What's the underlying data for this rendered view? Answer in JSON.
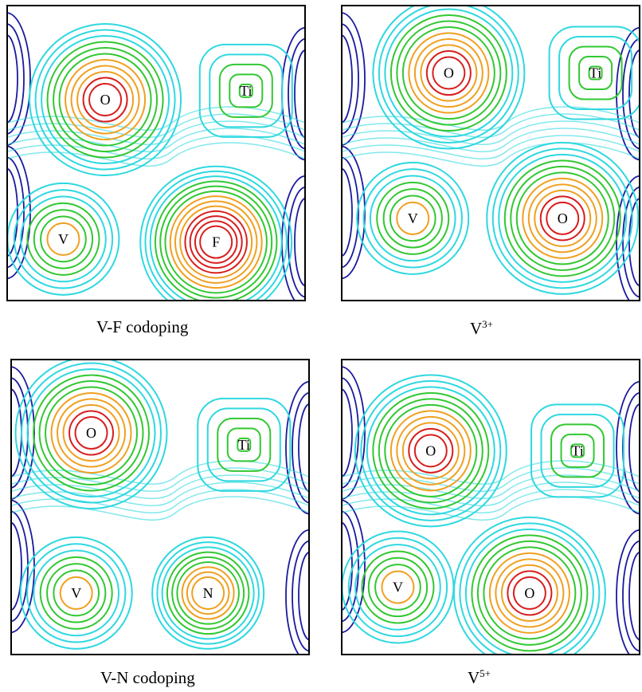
{
  "panels": [
    {
      "id": "vf",
      "caption": {
        "main": "V-F  codoping",
        "sup": ""
      },
      "atoms": [
        {
          "label": "O",
          "nx": 0.33,
          "ny": 0.32,
          "peak": 11
        },
        {
          "label": "Ti",
          "nx": 0.8,
          "ny": 0.29,
          "peak": 5
        },
        {
          "label": "V",
          "nx": 0.19,
          "ny": 0.79,
          "peak": 7
        },
        {
          "label": "F",
          "nx": 0.7,
          "ny": 0.8,
          "peak": 13
        }
      ]
    },
    {
      "id": "v3",
      "caption": {
        "main": "V",
        "sup": "3+"
      },
      "atoms": [
        {
          "label": "O",
          "nx": 0.36,
          "ny": 0.23,
          "peak": 11
        },
        {
          "label": "Ti",
          "nx": 0.85,
          "ny": 0.23,
          "peak": 5
        },
        {
          "label": "V",
          "nx": 0.24,
          "ny": 0.72,
          "peak": 7
        },
        {
          "label": "O",
          "nx": 0.74,
          "ny": 0.72,
          "peak": 11
        }
      ]
    },
    {
      "id": "vn",
      "caption": {
        "main": "V-N  codoping",
        "sup": ""
      },
      "atoms": [
        {
          "label": "O",
          "nx": 0.27,
          "ny": 0.25,
          "peak": 11
        },
        {
          "label": "Ti",
          "nx": 0.78,
          "ny": 0.29,
          "peak": 5
        },
        {
          "label": "V",
          "nx": 0.22,
          "ny": 0.79,
          "peak": 7
        },
        {
          "label": "N",
          "nx": 0.66,
          "ny": 0.79,
          "peak": 9
        }
      ]
    },
    {
      "id": "v5",
      "caption": {
        "main": "V",
        "sup": "5+"
      },
      "atoms": [
        {
          "label": "O",
          "nx": 0.3,
          "ny": 0.31,
          "peak": 11
        },
        {
          "label": "Ti",
          "nx": 0.79,
          "ny": 0.31,
          "peak": 5
        },
        {
          "label": "V",
          "nx": 0.19,
          "ny": 0.77,
          "peak": 7
        },
        {
          "label": "O",
          "nx": 0.63,
          "ny": 0.79,
          "peak": 11
        }
      ]
    }
  ],
  "colors": {
    "level1": "#1a1a9e",
    "level2": "#2ed8e0",
    "level3": "#32c832",
    "level4": "#f0a020",
    "level5": "#d81e1e",
    "frame": "#000000"
  }
}
